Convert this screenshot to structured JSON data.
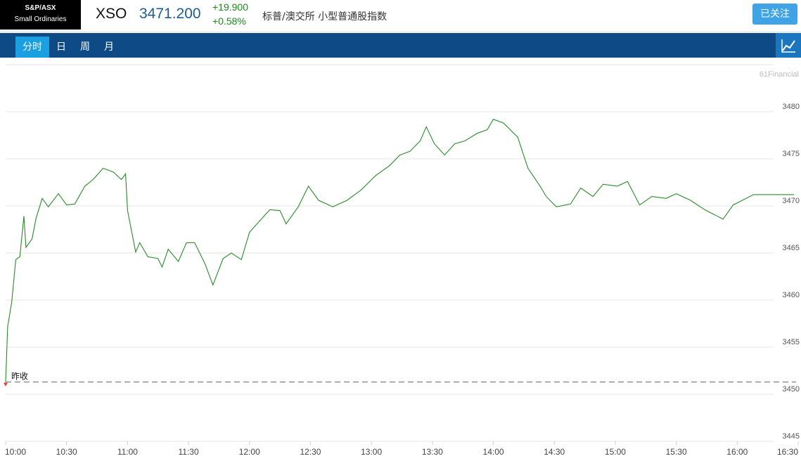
{
  "header": {
    "badge": [
      "S&P/ASX",
      "Small Ordinaries"
    ],
    "symbol": "XSO",
    "price": "3471.200",
    "change": "+19.900",
    "change_pct": "+0.58%",
    "name": "标普/澳交所 小型普通股指数",
    "button": "已关注"
  },
  "tabs": [
    "分时",
    "日",
    "周",
    "月"
  ],
  "chart_data": {
    "type": "line",
    "watermark": "61Financial",
    "x": [
      "10:00",
      "10:01",
      "10:03",
      "10:05",
      "10:07",
      "10:09",
      "10:10",
      "10:13",
      "10:15",
      "10:18",
      "10:21",
      "10:26",
      "10:30",
      "10:34",
      "10:39",
      "10:43",
      "10:48",
      "10:53",
      "10:57",
      "10:59",
      "11:00",
      "11:04",
      "11:06",
      "11:10",
      "11:15",
      "11:17",
      "11:20",
      "11:25",
      "11:29",
      "11:33",
      "11:38",
      "11:42",
      "11:47",
      "11:51",
      "11:56",
      "12:00",
      "12:05",
      "12:10",
      "12:15",
      "12:18",
      "12:24",
      "12:29",
      "12:34",
      "12:41",
      "12:48",
      "12:55",
      "13:02",
      "13:09",
      "13:14",
      "13:19",
      "13:24",
      "13:27",
      "13:31",
      "13:36",
      "13:41",
      "13:46",
      "13:52",
      "13:57",
      "14:00",
      "14:05",
      "14:12",
      "14:17",
      "14:23",
      "14:26",
      "14:31",
      "14:38",
      "14:43",
      "14:49",
      "14:54",
      "15:01",
      "15:06",
      "15:12",
      "15:18",
      "15:25",
      "15:30",
      "15:37",
      "15:44",
      "15:53",
      "15:58",
      "16:08",
      "16:28"
    ],
    "series": [
      {
        "name": "XSO",
        "color": "#2a8a2a",
        "values": [
          3451.3,
          3457.2,
          3459.8,
          3464.3,
          3464.6,
          3468.9,
          3465.6,
          3466.5,
          3468.7,
          3470.8,
          3469.9,
          3471.3,
          3470.1,
          3470.2,
          3472.1,
          3472.8,
          3474.0,
          3473.6,
          3472.8,
          3473.4,
          3469.5,
          3465.1,
          3466.1,
          3464.6,
          3464.4,
          3463.5,
          3465.4,
          3464.1,
          3466.1,
          3466.1,
          3463.9,
          3461.6,
          3464.4,
          3465.0,
          3464.3,
          3467.2,
          3468.4,
          3469.6,
          3469.5,
          3468.1,
          3469.9,
          3472.1,
          3470.6,
          3469.9,
          3470.6,
          3471.7,
          3473.2,
          3474.3,
          3475.4,
          3475.8,
          3476.9,
          3478.4,
          3476.6,
          3475.4,
          3476.6,
          3476.9,
          3477.7,
          3478.1,
          3479.2,
          3478.8,
          3477.3,
          3474.0,
          3472.1,
          3471.0,
          3469.9,
          3470.2,
          3471.9,
          3471.0,
          3472.3,
          3472.1,
          3472.6,
          3470.1,
          3471.0,
          3470.8,
          3471.3,
          3470.6,
          3469.6,
          3468.6,
          3470.1,
          3471.2,
          3471.2
        ]
      }
    ],
    "prev_close": 3451.3,
    "prev_close_label": "昨收",
    "xlim": [
      "10:00",
      "16:30"
    ],
    "xticks": [
      "10:00",
      "10:30",
      "11:00",
      "11:30",
      "12:00",
      "12:30",
      "13:00",
      "13:30",
      "14:00",
      "14:30",
      "15:00",
      "15:30",
      "16:00",
      "16:30"
    ],
    "ylim": [
      3445,
      3485
    ],
    "yticks": [
      3445,
      3450,
      3455,
      3460,
      3465,
      3470,
      3475,
      3480
    ],
    "grid": true
  }
}
